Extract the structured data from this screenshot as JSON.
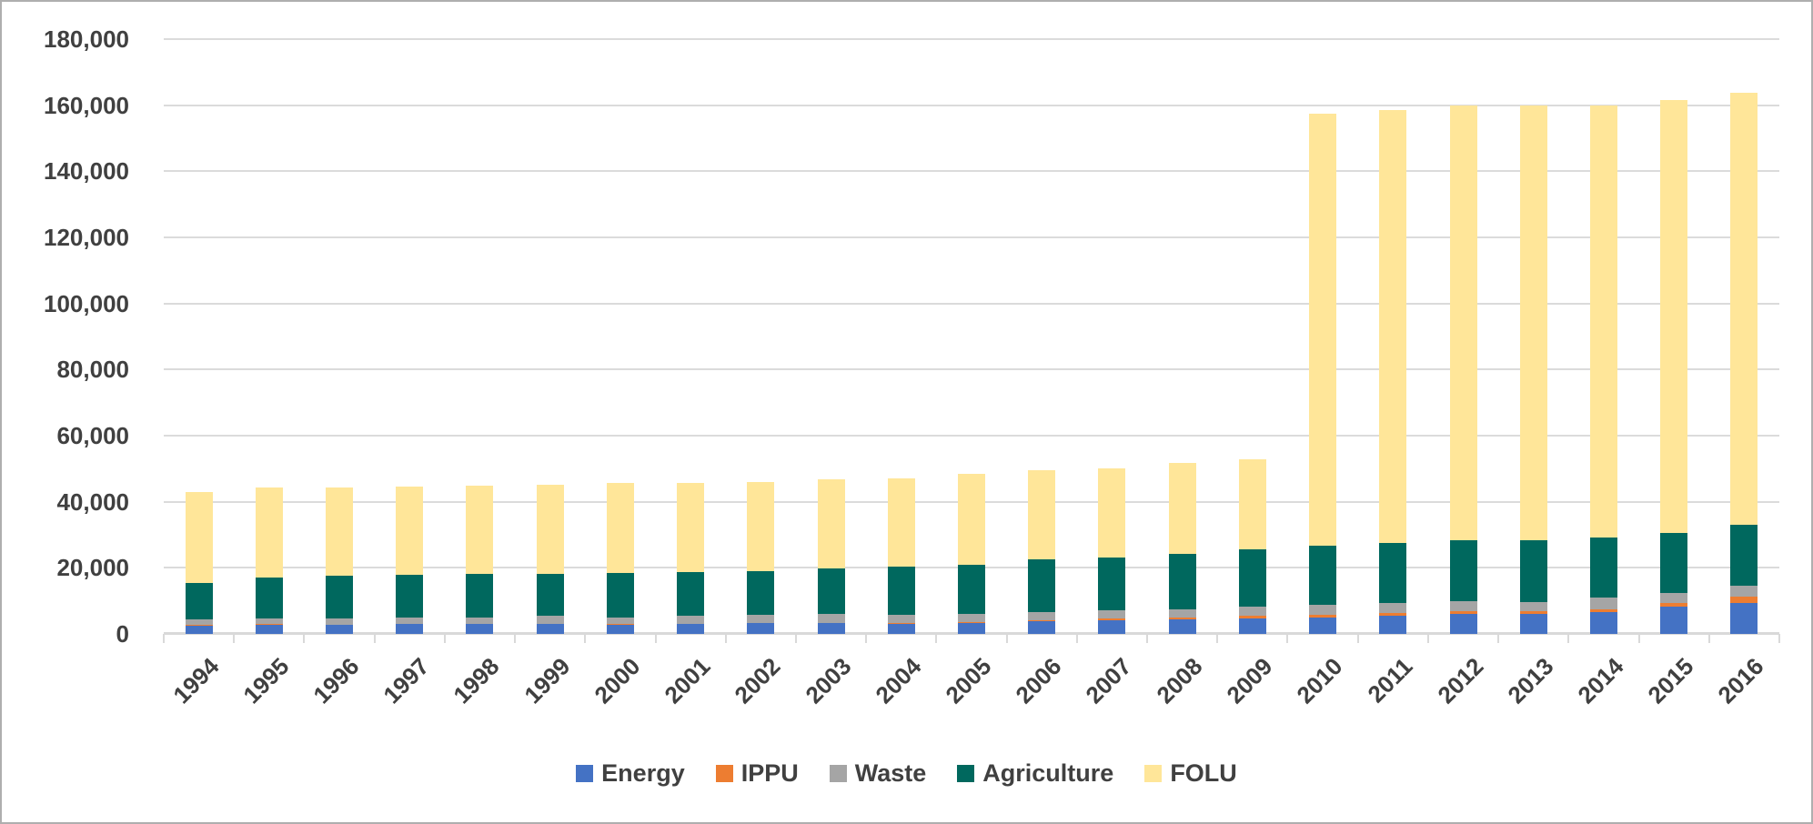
{
  "chart_data": {
    "type": "bar",
    "stacked": true,
    "title": "",
    "xlabel": "",
    "ylabel": "",
    "categories": [
      "1994",
      "1995",
      "1996",
      "1997",
      "1998",
      "1999",
      "2000",
      "2001",
      "2002",
      "2003",
      "2004",
      "2005",
      "2006",
      "2007",
      "2008",
      "2009",
      "2010",
      "2011",
      "2012",
      "2013",
      "2014",
      "2015",
      "2016"
    ],
    "series": [
      {
        "name": "Energy",
        "color": "#4472C4",
        "values": [
          2600,
          2800,
          2750,
          2900,
          2900,
          2950,
          2750,
          2950,
          3200,
          3200,
          3000,
          3300,
          3800,
          4000,
          4300,
          4550,
          4900,
          5500,
          6000,
          6000,
          6650,
          8300,
          9400
        ]
      },
      {
        "name": "IPPU",
        "color": "#ED7D31",
        "values": [
          100,
          100,
          100,
          150,
          150,
          150,
          150,
          150,
          200,
          200,
          200,
          250,
          350,
          550,
          750,
          850,
          900,
          900,
          900,
          900,
          900,
          1100,
          2000
        ]
      },
      {
        "name": "Waste",
        "color": "#A5A5A5",
        "values": [
          1800,
          1850,
          1850,
          1900,
          2000,
          2300,
          2100,
          2350,
          2300,
          2550,
          2550,
          2600,
          2500,
          2500,
          2500,
          2750,
          2950,
          2950,
          3050,
          2750,
          3500,
          3050,
          3150
        ]
      },
      {
        "name": "Agriculture",
        "color": "#00685E",
        "values": [
          11000,
          12400,
          12850,
          12850,
          13050,
          12750,
          13500,
          13350,
          13250,
          13900,
          14550,
          14900,
          15950,
          16050,
          16750,
          17450,
          17900,
          18100,
          18400,
          18700,
          18000,
          18150,
          18450
        ]
      },
      {
        "name": "FOLU",
        "color": "#FFE699",
        "values": [
          27400,
          27100,
          26700,
          26900,
          26800,
          27000,
          27100,
          27000,
          26900,
          27000,
          26800,
          27350,
          26850,
          27100,
          27550,
          27150,
          130800,
          131200,
          131550,
          131550,
          130950,
          131000,
          130900
        ]
      }
    ],
    "ylim": [
      0,
      180000
    ],
    "yticks": [
      0,
      20000,
      40000,
      60000,
      80000,
      100000,
      120000,
      140000,
      160000,
      180000
    ],
    "ytick_labels": [
      "0",
      "20,000",
      "40,000",
      "60,000",
      "80,000",
      "100,000",
      "120,000",
      "140,000",
      "160,000",
      "180,000"
    ],
    "grid": true,
    "legend_position": "bottom",
    "gridline_color": "#DBDBDB",
    "axis_color": "#D9D9D9",
    "text_color": "#404040"
  }
}
